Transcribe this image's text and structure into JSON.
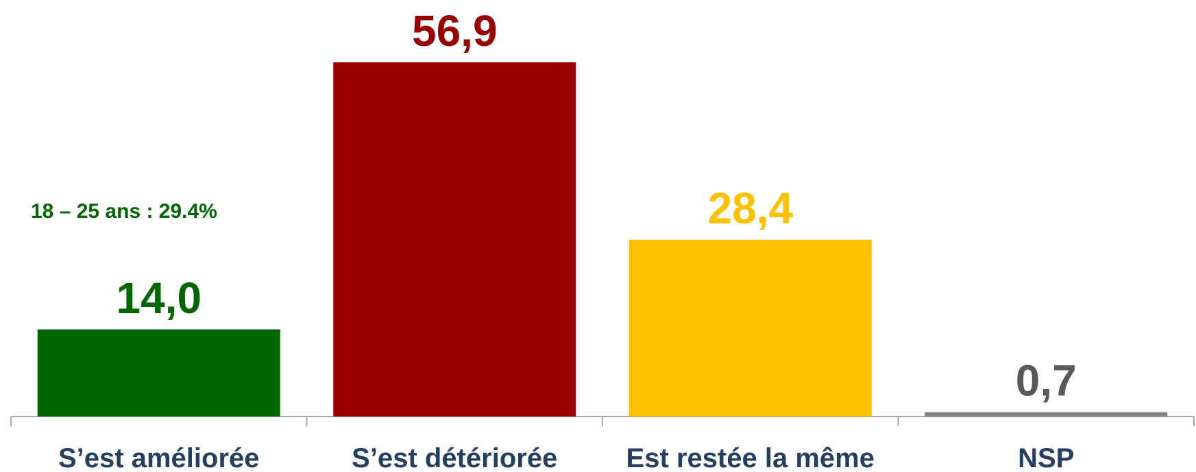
{
  "chart_data": {
    "type": "bar",
    "categories": [
      "S’est améliorée",
      "S’est détériorée",
      "Est restée la même",
      "NSP"
    ],
    "values": [
      14.0,
      56.9,
      28.4,
      0.7
    ],
    "value_labels": [
      "14,0",
      "56,9",
      "28,4",
      "0,7"
    ],
    "colors": [
      "#006600",
      "#990000",
      "#ffc000",
      "#808080"
    ],
    "label_colors": [
      "#006600",
      "#990000",
      "#ffc000",
      "#595959"
    ],
    "annotation": "18 – 25 ans : 29.4%",
    "annotation_color": "#006600",
    "category_color": "#243f60"
  }
}
